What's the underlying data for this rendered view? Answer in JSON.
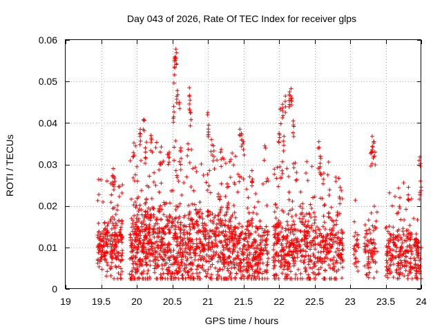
{
  "chart_data": {
    "type": "scatter",
    "title": "Day 043 of 2026, Rate Of TEC Index for receiver glps",
    "xlabel": "GPS time / hours",
    "ylabel": "ROTI / TECUs",
    "xlim": [
      19,
      24
    ],
    "ylim": [
      0,
      0.06
    ],
    "xticks": [
      19,
      19.5,
      20,
      20.5,
      21,
      21.5,
      22,
      22.5,
      23,
      23.5,
      24
    ],
    "xtick_labels": [
      "19",
      "19.5",
      "20",
      "20.5",
      "21",
      "21.5",
      "22",
      "22.5",
      "23",
      "23.5",
      "24"
    ],
    "yticks": [
      0,
      0.01,
      0.02,
      0.03,
      0.04,
      0.05,
      0.06
    ],
    "ytick_labels": [
      "0",
      "0.01",
      "0.02",
      "0.03",
      "0.04",
      "0.05",
      "0.06"
    ],
    "grid": true,
    "marker": "+",
    "color": "#ff0000",
    "segments": [
      {
        "start": 19.45,
        "end": 19.6,
        "n": 90,
        "base": 0.01,
        "spread": 0.008
      },
      {
        "start": 19.62,
        "end": 19.8,
        "n": 120,
        "base": 0.011,
        "spread": 0.01
      },
      {
        "start": 19.9,
        "end": 20.6,
        "n": 520,
        "base": 0.011,
        "spread": 0.012
      },
      {
        "start": 20.6,
        "end": 21.4,
        "n": 520,
        "base": 0.011,
        "spread": 0.011
      },
      {
        "start": 21.4,
        "end": 21.85,
        "n": 260,
        "base": 0.009,
        "spread": 0.009
      },
      {
        "start": 21.92,
        "end": 22.9,
        "n": 560,
        "base": 0.01,
        "spread": 0.01
      },
      {
        "start": 23.05,
        "end": 23.12,
        "n": 25,
        "base": 0.009,
        "spread": 0.006
      },
      {
        "start": 23.2,
        "end": 23.38,
        "n": 70,
        "base": 0.009,
        "spread": 0.006
      },
      {
        "start": 23.5,
        "end": 23.92,
        "n": 200,
        "base": 0.009,
        "spread": 0.008
      },
      {
        "start": 23.92,
        "end": 24,
        "n": 45,
        "base": 0.008,
        "spread": 0.009
      }
    ],
    "peaks": [
      {
        "x": 19.67,
        "y": 0.029
      },
      {
        "x": 19.68,
        "y": 0.027
      },
      {
        "x": 19.96,
        "y": 0.0352
      },
      {
        "x": 20.05,
        "y": 0.0385
      },
      {
        "x": 20.1,
        "y": 0.0408
      },
      {
        "x": 20.12,
        "y": 0.034
      },
      {
        "x": 20.2,
        "y": 0.037
      },
      {
        "x": 20.33,
        "y": 0.033
      },
      {
        "x": 20.45,
        "y": 0.0325
      },
      {
        "x": 20.52,
        "y": 0.044
      },
      {
        "x": 20.53,
        "y": 0.0535
      },
      {
        "x": 20.54,
        "y": 0.056
      },
      {
        "x": 20.55,
        "y": 0.0578
      },
      {
        "x": 20.57,
        "y": 0.0478
      },
      {
        "x": 20.6,
        "y": 0.045
      },
      {
        "x": 20.62,
        "y": 0.034
      },
      {
        "x": 20.74,
        "y": 0.0485
      },
      {
        "x": 20.75,
        "y": 0.0455
      },
      {
        "x": 20.76,
        "y": 0.0425
      },
      {
        "x": 20.72,
        "y": 0.035
      },
      {
        "x": 21.0,
        "y": 0.0425
      },
      {
        "x": 21.01,
        "y": 0.0395
      },
      {
        "x": 21.05,
        "y": 0.036
      },
      {
        "x": 21.08,
        "y": 0.0345
      },
      {
        "x": 21.18,
        "y": 0.033
      },
      {
        "x": 21.45,
        "y": 0.0385
      },
      {
        "x": 21.47,
        "y": 0.0375
      },
      {
        "x": 21.5,
        "y": 0.0355
      },
      {
        "x": 21.62,
        "y": 0.0285
      },
      {
        "x": 21.8,
        "y": 0.0345
      },
      {
        "x": 22.0,
        "y": 0.0375
      },
      {
        "x": 22.02,
        "y": 0.0435
      },
      {
        "x": 22.05,
        "y": 0.0445
      },
      {
        "x": 22.09,
        "y": 0.0465
      },
      {
        "x": 22.15,
        "y": 0.0475
      },
      {
        "x": 22.17,
        "y": 0.0483
      },
      {
        "x": 22.18,
        "y": 0.046
      },
      {
        "x": 22.2,
        "y": 0.0405
      },
      {
        "x": 22.07,
        "y": 0.0368
      },
      {
        "x": 22.56,
        "y": 0.0355
      },
      {
        "x": 22.58,
        "y": 0.032
      },
      {
        "x": 22.86,
        "y": 0.0245
      },
      {
        "x": 23.31,
        "y": 0.0368
      },
      {
        "x": 23.33,
        "y": 0.0355
      },
      {
        "x": 23.35,
        "y": 0.033
      },
      {
        "x": 23.3,
        "y": 0.033
      },
      {
        "x": 23.98,
        "y": 0.0318
      },
      {
        "x": 23.99,
        "y": 0.026
      },
      {
        "x": 23.82,
        "y": 0.0245
      },
      {
        "x": 23.7,
        "y": 0.022
      }
    ]
  }
}
